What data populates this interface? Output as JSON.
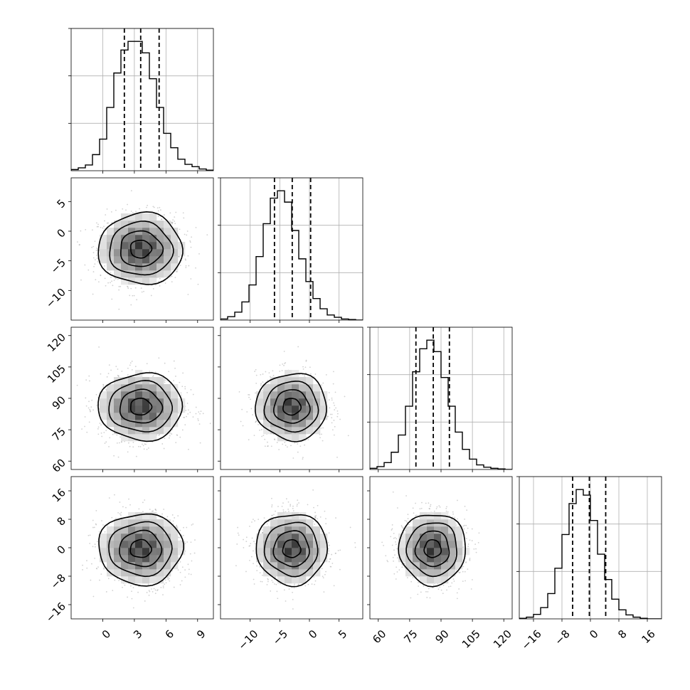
{
  "chart_data": {
    "type": "corner",
    "title": "",
    "parameters": [
      {
        "mean": 3.6,
        "sd": 2.0,
        "range": [
          -3.0,
          10.5
        ],
        "ticks": [
          0,
          3,
          6,
          9
        ],
        "tick_labels": [
          "0",
          "3",
          "6",
          "9"
        ],
        "quantiles": [
          2.05,
          3.6,
          5.35
        ]
      },
      {
        "mean": -3.0,
        "sd": 3.0,
        "range": [
          -15.0,
          9.0
        ],
        "ticks": [
          -10,
          -5,
          0,
          5
        ],
        "tick_labels": [
          "−10",
          "−5",
          "0",
          "5"
        ],
        "quantiles": [
          -5.9,
          -2.9,
          0.2
        ]
      },
      {
        "mean": 86.0,
        "sd": 8.0,
        "range": [
          56.0,
          124.0
        ],
        "ticks": [
          60,
          75,
          90,
          105,
          120
        ],
        "tick_labels": [
          "60",
          "75",
          "90",
          "105",
          "120"
        ],
        "quantiles": [
          78.0,
          86.3,
          94.0
        ]
      },
      {
        "mean": -0.3,
        "sd": 5.0,
        "range": [
          -20.0,
          20.0
        ],
        "ticks": [
          -16,
          -8,
          0,
          8,
          16
        ],
        "tick_labels": [
          "−16",
          "−8",
          "0",
          "8",
          "16"
        ],
        "quantiles": [
          -5.0,
          -0.3,
          4.3
        ]
      }
    ],
    "histograms": [
      {
        "bins": 20,
        "counts": [
          2,
          5,
          10,
          28,
          55,
          110,
          170,
          210,
          225,
          225,
          205,
          160,
          110,
          65,
          40,
          20,
          11,
          7,
          3,
          1
        ]
      },
      {
        "bins": 20,
        "counts": [
          2,
          6,
          14,
          32,
          62,
          112,
          170,
          215,
          228,
          208,
          158,
          108,
          68,
          38,
          20,
          9,
          5,
          2,
          1,
          0
        ]
      },
      {
        "bins": 20,
        "counts": [
          2,
          5,
          12,
          30,
          60,
          110,
          170,
          210,
          225,
          205,
          160,
          110,
          65,
          35,
          18,
          8,
          4,
          2,
          1,
          0
        ]
      },
      {
        "bins": 20,
        "counts": [
          1,
          3,
          8,
          20,
          45,
          90,
          150,
          205,
          230,
          220,
          175,
          115,
          70,
          35,
          16,
          7,
          3,
          1,
          0,
          0
        ]
      }
    ],
    "contour_levels": [
      "0.5-sigma",
      "1-sigma",
      "1.5-sigma",
      "2-sigma"
    ],
    "show_datapoints": true,
    "grid": true,
    "legend": "none"
  }
}
